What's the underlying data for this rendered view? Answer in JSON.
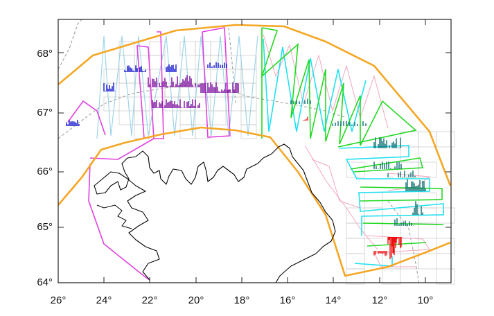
{
  "map": {
    "x_ticks": [
      "26°",
      "24°",
      "22°",
      "20°",
      "18°",
      "16°",
      "14°",
      "12°",
      "10°"
    ],
    "y_ticks": [
      "68°",
      "67°",
      "66°",
      "65°",
      "64°"
    ],
    "colors": {
      "survey_boundary": "#f5a623",
      "coastline": "#000000",
      "magenta_lines": "#e040e0",
      "light_blue_lines": "#9fd4e8",
      "cyan_lines": "#1fe0f0",
      "green_lines": "#22d822",
      "pink_lines": "#f2a6c0",
      "grid_lines": "#c8c8c8",
      "dashed_lines": "#999999",
      "blue_echo": "#1010cc",
      "purple_echo": "#7a0a9a",
      "teal_echo": "#0b6f72",
      "red_echo": "#ee1111"
    }
  }
}
